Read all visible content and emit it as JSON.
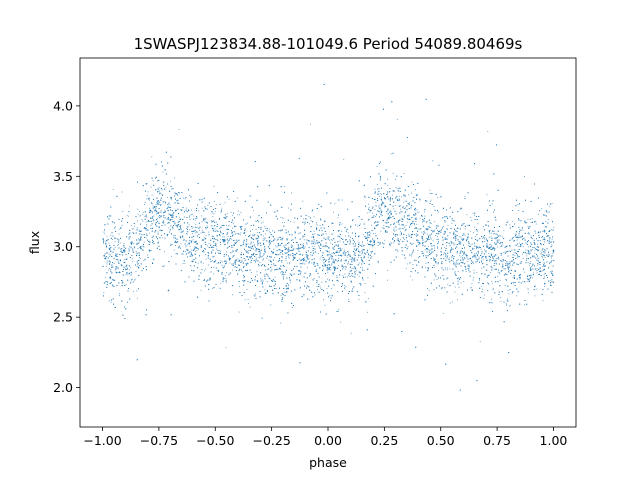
{
  "chart_data": {
    "type": "scatter",
    "title": "1SWASPJ123834.88-101049.6 Period 54089.80469s",
    "xlabel": "phase",
    "ylabel": "flux",
    "xlim": [
      -1.1,
      1.1
    ],
    "ylim": [
      1.72,
      4.34
    ],
    "xticks": [
      -1.0,
      -0.75,
      -0.5,
      -0.25,
      0.0,
      0.25,
      0.5,
      0.75,
      1.0
    ],
    "xtick_labels": [
      "−1.00",
      "−0.75",
      "−0.50",
      "−0.25",
      "0.00",
      "0.25",
      "0.50",
      "0.75",
      "1.00"
    ],
    "yticks": [
      2.0,
      2.5,
      3.0,
      3.5,
      4.0
    ],
    "ytick_labels": [
      "2.0",
      "2.5",
      "3.0",
      "3.5",
      "4.0"
    ],
    "grid": false,
    "marker_color": "#1f77b4",
    "series": [
      {
        "phase": [
          -1.0,
          -0.95,
          -0.9,
          -0.85,
          -0.8,
          -0.75,
          -0.7,
          -0.65,
          -0.6,
          -0.55,
          -0.5,
          -0.45,
          -0.4,
          -0.35,
          -0.3,
          -0.25,
          -0.2,
          -0.15,
          -0.1,
          -0.05,
          0.0,
          0.05,
          0.1,
          0.15,
          0.2,
          0.25,
          0.3,
          0.35,
          0.4,
          0.45,
          0.5,
          0.55,
          0.6,
          0.65,
          0.7,
          0.75,
          0.8,
          0.85,
          0.9,
          0.95,
          1.0
        ],
        "mean_flux": [
          2.95,
          2.92,
          2.9,
          2.95,
          3.15,
          3.28,
          3.22,
          3.15,
          3.08,
          3.05,
          3.02,
          3.0,
          2.98,
          2.96,
          2.95,
          2.94,
          2.93,
          2.93,
          2.95,
          2.96,
          2.95,
          2.92,
          2.9,
          2.95,
          3.15,
          3.28,
          3.22,
          3.15,
          3.08,
          3.05,
          3.02,
          3.0,
          2.98,
          2.96,
          2.95,
          2.94,
          2.93,
          2.93,
          2.95,
          2.96,
          2.95
        ],
        "scatter_sigma": 0.15,
        "point_count": 9000
      }
    ]
  }
}
